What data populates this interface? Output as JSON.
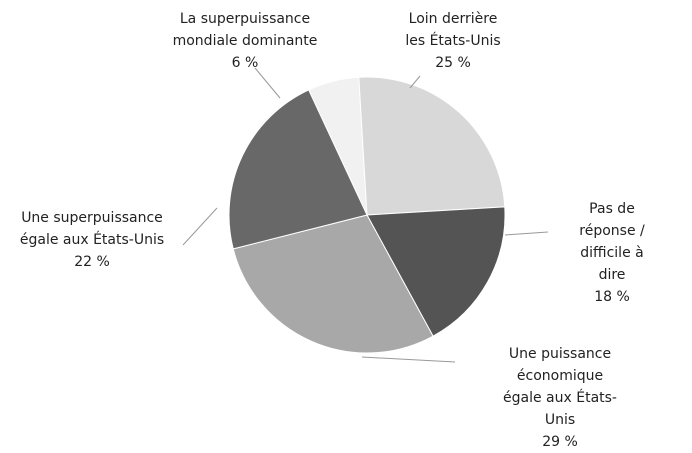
{
  "chart_data": {
    "type": "pie",
    "categories": [
      "La superpuissance\nmondiale dominante",
      "Loin derrière\nles États-Unis",
      "Pas de réponse /\ndifficile à dire",
      "Une puissance économique\négale aux États-Unis",
      "Une superpuissance\négale aux États-Unis"
    ],
    "values": [
      6,
      25,
      18,
      29,
      22
    ],
    "value_labels": [
      "6 %",
      "25 %",
      "18 %",
      "29 %",
      "22 %"
    ],
    "colors": [
      "#f1f1f1",
      "#d8d8d8",
      "#545454",
      "#a8a8a8",
      "#686868"
    ]
  }
}
